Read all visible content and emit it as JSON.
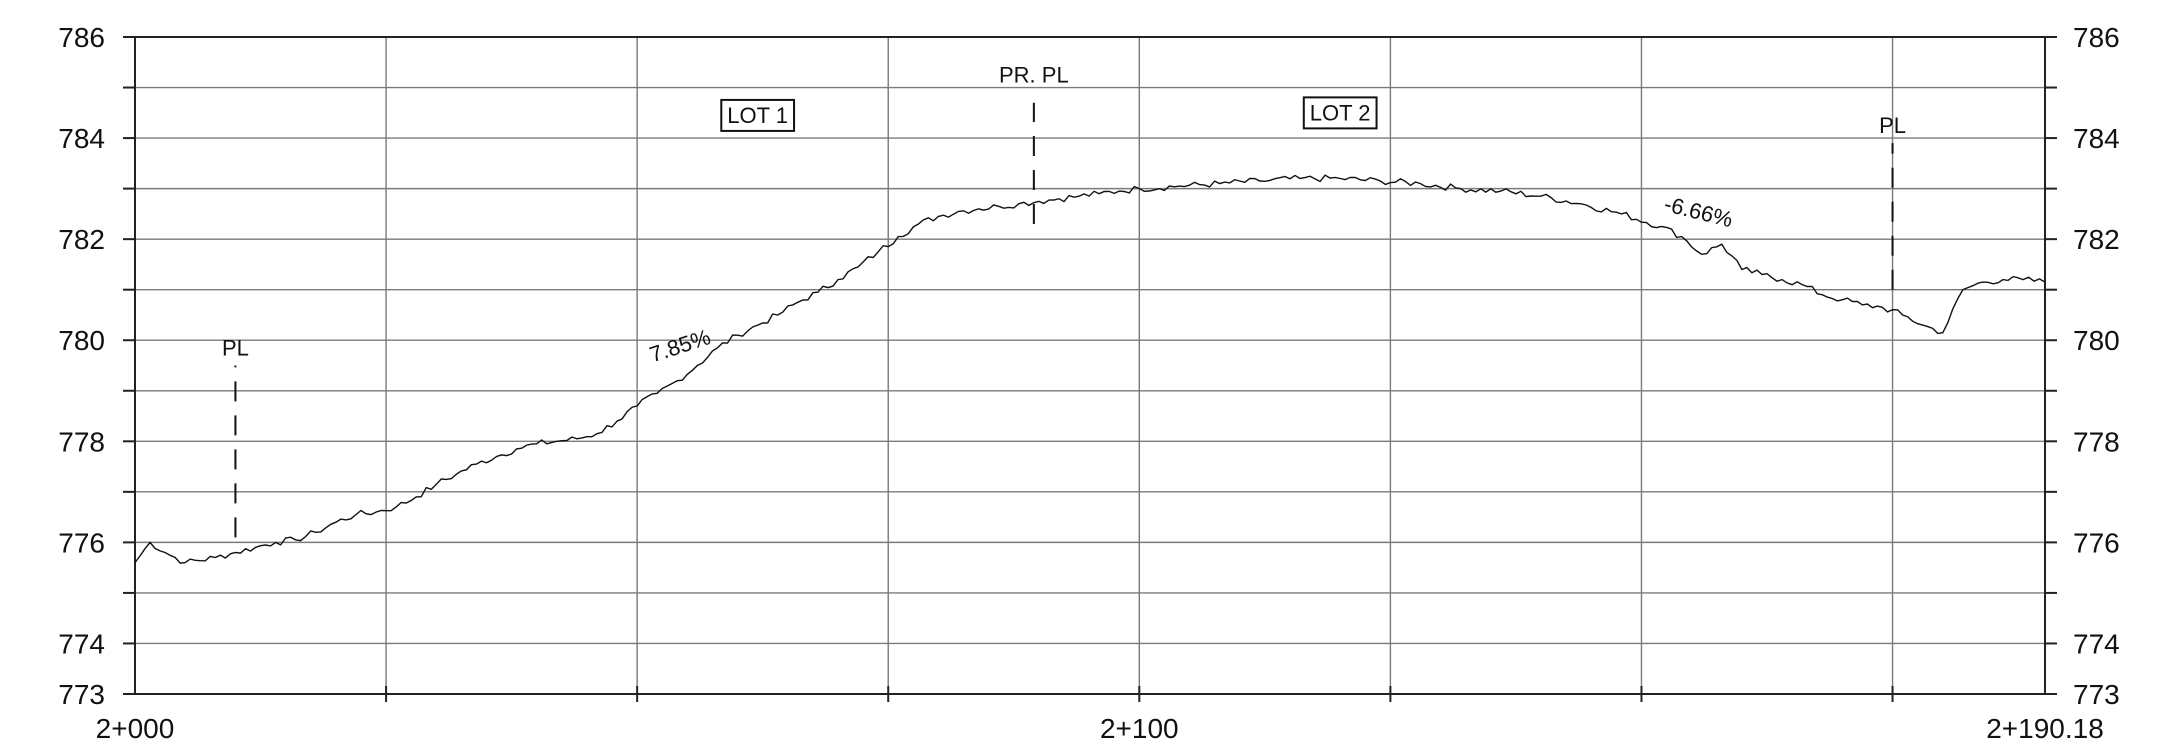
{
  "chart_data": {
    "type": "line",
    "title": "",
    "xlabel": "",
    "ylabel": "",
    "xlim": [
      0,
      190.18
    ],
    "ylim": [
      773,
      786
    ],
    "grid": true,
    "y_ticks": [
      {
        "value": 786,
        "label": "786"
      },
      {
        "value": 784,
        "label": "784"
      },
      {
        "value": 782,
        "label": "782"
      },
      {
        "value": 780,
        "label": "780"
      },
      {
        "value": 778,
        "label": "778"
      },
      {
        "value": 776,
        "label": "776"
      },
      {
        "value": 774,
        "label": "774"
      },
      {
        "value": 773,
        "label": "773"
      }
    ],
    "x_ticks": [
      {
        "value": 0,
        "label": "2+000"
      },
      {
        "value": 100,
        "label": "2+100"
      },
      {
        "value": 190.18,
        "label": "2+190.18"
      }
    ],
    "series": [
      {
        "x": [
          0,
          1.5,
          3,
          5,
          8,
          10,
          12,
          14,
          16,
          18,
          20,
          22,
          24,
          26,
          28,
          30,
          32,
          34,
          36,
          38,
          40,
          42,
          44,
          46,
          48,
          50,
          52,
          54,
          56,
          58,
          60,
          62,
          64,
          66,
          68,
          70,
          72,
          74,
          76,
          78,
          80,
          82,
          84,
          86,
          88,
          90,
          92,
          94,
          96,
          98,
          100,
          104,
          108,
          112,
          116,
          120,
          124,
          128,
          132,
          136,
          140,
          144,
          148,
          152,
          154,
          156,
          158,
          160,
          162,
          164,
          166,
          168,
          170,
          172,
          174,
          176,
          178,
          180,
          182,
          184,
          186,
          188,
          190.18
        ],
        "y": [
          775.6,
          776.0,
          775.8,
          775.6,
          775.7,
          775.8,
          775.9,
          776.0,
          776.05,
          776.2,
          776.4,
          776.55,
          776.6,
          776.7,
          776.9,
          777.15,
          777.35,
          777.55,
          777.7,
          777.85,
          777.95,
          778.0,
          778.05,
          778.15,
          778.4,
          778.7,
          778.95,
          779.2,
          779.5,
          779.85,
          780.1,
          780.3,
          780.5,
          780.75,
          780.95,
          781.2,
          781.45,
          781.75,
          782.05,
          782.3,
          782.45,
          782.55,
          782.6,
          782.65,
          782.7,
          782.75,
          782.8,
          782.85,
          782.9,
          782.95,
          783.0,
          783.05,
          783.1,
          783.15,
          783.2,
          783.2,
          783.15,
          783.1,
          783.0,
          782.95,
          782.85,
          782.7,
          782.5,
          782.25,
          782.05,
          781.7,
          781.9,
          781.4,
          781.3,
          781.2,
          781.1,
          780.9,
          780.8,
          780.7,
          780.65,
          780.5,
          780.3,
          780.15,
          781.0,
          781.15,
          781.2,
          781.2,
          781.15
        ]
      }
    ],
    "annotations": [
      {
        "text": "PL",
        "x": 10,
        "y": 779.7,
        "marker": "dashed-vertical",
        "from": 776.1,
        "to": 779.5
      },
      {
        "text": "PR. PL",
        "x": 89.5,
        "y": 785.1,
        "marker": "dashed-vertical",
        "from": 782.3,
        "to": 784.7
      },
      {
        "text": "PL",
        "x": 175,
        "y": 784.1,
        "marker": "dashed-vertical",
        "from": 781.0,
        "to": 783.9
      },
      {
        "text": "LOT 1",
        "x": 62,
        "y": 784.3,
        "boxed": true
      },
      {
        "text": "LOT 2",
        "x": 120,
        "y": 784.35,
        "boxed": true
      },
      {
        "text": "7.85%",
        "x": 54.5,
        "y": 779.75,
        "rotation": -18
      },
      {
        "text": "-6.66%",
        "x": 155.5,
        "y": 782.4,
        "rotation": 14
      }
    ]
  }
}
